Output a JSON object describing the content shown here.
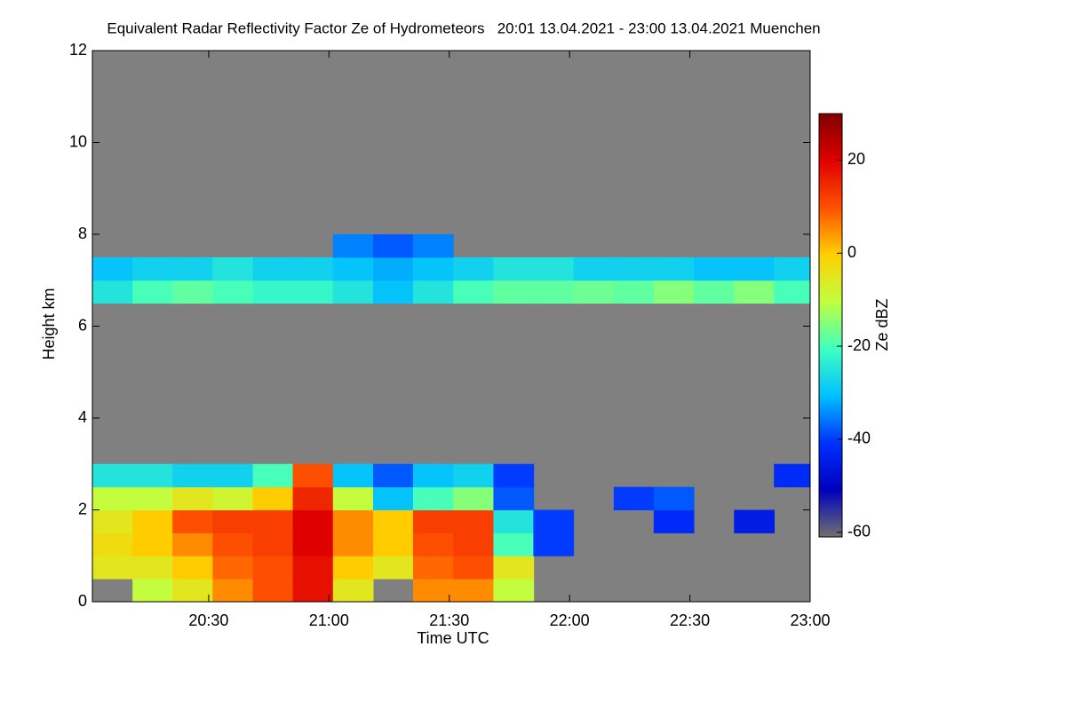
{
  "chart_data": {
    "type": "heatmap",
    "title": "Equivalent Radar Reflectivity Factor Ze of Hydrometeors   20:01 13.04.2021 - 23:00 13.04.2021 Muenchen",
    "x_label": "Time UTC",
    "y_label": "Height km",
    "colorbar_label": "Ze dBZ",
    "xlim": [
      20.0167,
      23.0
    ],
    "xticks": [
      {
        "value": 20.5,
        "label": "20:30"
      },
      {
        "value": 21.0,
        "label": "21:00"
      },
      {
        "value": 21.5,
        "label": "21:30"
      },
      {
        "value": 22.0,
        "label": "22:00"
      },
      {
        "value": 22.5,
        "label": "22:30"
      },
      {
        "value": 23.0,
        "label": "23:00"
      }
    ],
    "ylim": [
      0,
      12
    ],
    "yticks": [
      0,
      2,
      4,
      6,
      8,
      10,
      12
    ],
    "zlim": [
      -61,
      30
    ],
    "zticks": [
      -60,
      -40,
      -20,
      0,
      20
    ],
    "background": "#808080",
    "colors": [
      "#707070",
      "#0000c0",
      "#0030ff",
      "#00c0ff",
      "#40ffc0",
      "#c0ff40",
      "#ffd000",
      "#ff5000",
      "#e00000",
      "#800000"
    ],
    "x": [
      20.1,
      20.267,
      20.433,
      20.6,
      20.767,
      20.933,
      21.1,
      21.267,
      21.433,
      21.6,
      21.767,
      21.933,
      22.1,
      22.267,
      22.433,
      22.6,
      22.767,
      22.933
    ],
    "y": [
      0.25,
      0.75,
      1.25,
      1.75,
      2.25,
      2.75,
      6.75,
      7.25,
      7.75
    ],
    "z": [
      [
        null,
        -10,
        -5,
        5,
        10,
        18,
        -5,
        null,
        5,
        5,
        -10,
        null,
        null,
        null,
        null,
        null,
        null,
        null
      ],
      [
        -5,
        -5,
        0,
        8,
        10,
        18,
        0,
        -5,
        8,
        10,
        -5,
        null,
        null,
        null,
        null,
        null,
        null,
        null
      ],
      [
        -3,
        0,
        5,
        10,
        12,
        20,
        5,
        0,
        10,
        12,
        -20,
        -40,
        null,
        null,
        null,
        null,
        null,
        null
      ],
      [
        -5,
        0,
        10,
        12,
        12,
        20,
        5,
        0,
        12,
        12,
        -25,
        -40,
        null,
        null,
        -42,
        null,
        -45,
        null
      ],
      [
        -10,
        -10,
        -5,
        -8,
        0,
        15,
        -10,
        -30,
        -20,
        -15,
        -38,
        null,
        null,
        -40,
        -38,
        null,
        null,
        null
      ],
      [
        -25,
        -25,
        -28,
        -28,
        -20,
        10,
        -30,
        -38,
        -30,
        -28,
        -40,
        null,
        null,
        null,
        null,
        null,
        null,
        -42
      ],
      [
        -25,
        -20,
        -18,
        -20,
        -22,
        -22,
        -25,
        -30,
        -25,
        -20,
        -18,
        -18,
        -17,
        -18,
        -15,
        -18,
        -15,
        -20
      ],
      [
        -30,
        -28,
        -28,
        -25,
        -28,
        -28,
        -30,
        -32,
        -30,
        -28,
        -25,
        -25,
        -28,
        -28,
        -28,
        -30,
        -30,
        -28
      ],
      [
        null,
        null,
        null,
        null,
        null,
        null,
        -35,
        -38,
        -35,
        null,
        null,
        null,
        null,
        null,
        null,
        null,
        null,
        null
      ]
    ]
  }
}
